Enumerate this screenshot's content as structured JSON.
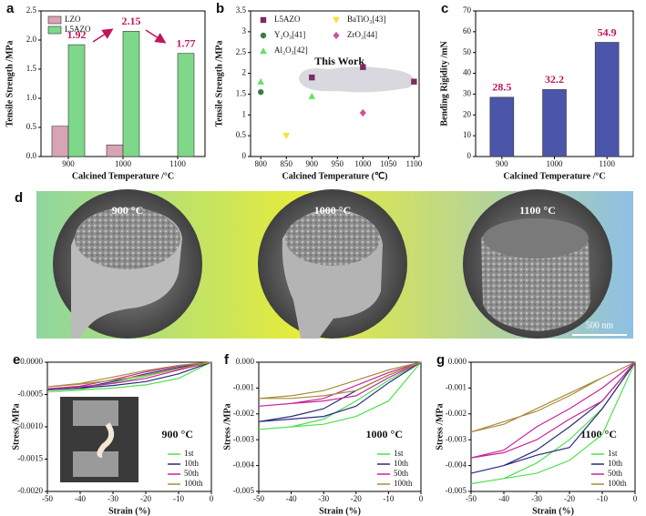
{
  "chart_data": [
    {
      "type": "bar",
      "label": "a",
      "x_label": "Calcined Temperature /°C",
      "y_label": "Tensile Strength /MPa",
      "categories": [
        "900",
        "1000",
        "1100"
      ],
      "series": [
        {
          "name": "LZO",
          "color": "#d9a3b6",
          "values": [
            0.52,
            0.2,
            null
          ]
        },
        {
          "name": "L5AZO",
          "color": "#7ed88a",
          "values": [
            1.92,
            2.15,
            1.77
          ],
          "show_labels": true
        }
      ],
      "ylim": [
        0,
        2.5
      ],
      "yticks": [
        {
          "value": 0,
          "label": "0.0"
        },
        {
          "value": 0.5,
          "label": "0.5"
        },
        {
          "value": 1,
          "label": "1.0"
        },
        {
          "value": 1.5,
          "label": "1.5"
        },
        {
          "value": 2,
          "label": "2.0"
        },
        {
          "value": 2.5,
          "label": "2.5"
        }
      ],
      "legend": "upper left"
    },
    {
      "type": "scatter",
      "label": "b",
      "x_label": "Calcined Temperature (℃)",
      "y_label": "Tensile Strength /MPa",
      "annotation": "This Work",
      "series": [
        {
          "name": "L5AZO",
          "color": "#7a2d5e",
          "marker": "square",
          "x": [
            900,
            1000,
            1100
          ],
          "values": [
            1.9,
            2.15,
            1.8
          ]
        },
        {
          "name": "Y₂O₃[41]",
          "color": "#3d7a4a",
          "marker": "circle",
          "x": [
            800
          ],
          "values": [
            1.55
          ]
        },
        {
          "name": "Al₂O₃[42]",
          "color": "#66e066",
          "marker": "triangle",
          "x": [
            800,
            900
          ],
          "values": [
            1.8,
            1.45
          ]
        },
        {
          "name": "BaTiO₃[43]",
          "color": "#f2e23a",
          "marker": "triangle-down",
          "x": [
            850
          ],
          "values": [
            0.5
          ]
        },
        {
          "name": "ZrO₂[44]",
          "color": "#d0509a",
          "marker": "diamond",
          "x": [
            1000
          ],
          "values": [
            1.05
          ]
        }
      ],
      "xlim": [
        780,
        1110
      ],
      "xticks": [
        800,
        850,
        900,
        950,
        1000,
        1050,
        1100
      ],
      "ylim": [
        0,
        3.5
      ],
      "yticks": [
        0,
        0.5,
        1,
        1.5,
        2,
        2.5,
        3,
        3.5
      ],
      "legend": "upper left"
    },
    {
      "type": "bar",
      "label": "c",
      "x_label": "Calcined Temperature /°C",
      "y_label": "Bending Rigidity /mN",
      "categories": [
        "900",
        "1000",
        "1100"
      ],
      "values": [
        28.5,
        32.2,
        54.9
      ],
      "color": "#4b56aa",
      "show_labels": true,
      "ylim": [
        0,
        70
      ],
      "yticks": [
        0,
        10,
        20,
        30,
        40,
        50,
        60,
        70
      ]
    },
    {
      "type": "line",
      "label": "e",
      "x_label": "Strain (%)",
      "y_label": "Stress /MPa",
      "annotation": "900 °C",
      "series": [
        {
          "name": "1st",
          "color": "#4fe04f",
          "x": [
            0,
            -10,
            -20,
            -30,
            -40,
            -50,
            -40,
            -30,
            -20,
            -10,
            0
          ],
          "values": [
            0,
            -0.00025,
            -0.00035,
            -0.0004,
            -0.00043,
            -0.00046,
            -0.00042,
            -0.00032,
            -0.00022,
            -0.0001,
            0
          ]
        },
        {
          "name": "10th",
          "color": "#2a2a80",
          "x": [
            0,
            -10,
            -20,
            -30,
            -40,
            -50,
            -40,
            -30,
            -20,
            -10,
            0
          ],
          "values": [
            0,
            -0.00018,
            -0.0003,
            -0.00036,
            -0.0004,
            -0.00043,
            -0.0004,
            -0.0003,
            -0.00018,
            -8e-05,
            0
          ]
        },
        {
          "name": "50th",
          "color": "#c8249a",
          "x": [
            0,
            -10,
            -20,
            -30,
            -40,
            -50,
            -40,
            -30,
            -20,
            -10,
            0
          ],
          "values": [
            0,
            -0.00012,
            -0.00025,
            -0.00033,
            -0.00038,
            -0.00041,
            -0.00037,
            -0.00027,
            -0.00015,
            -6e-05,
            0
          ]
        },
        {
          "name": "100th",
          "color": "#a88c3c",
          "x": [
            0,
            -10,
            -20,
            -30,
            -40,
            -50,
            -40,
            -30,
            -20,
            -10,
            0
          ],
          "values": [
            0,
            -0.0001,
            -0.0002,
            -0.00028,
            -0.00034,
            -0.00038,
            -0.00033,
            -0.00023,
            -0.00013,
            -5e-05,
            0
          ]
        }
      ],
      "xlim": [
        -50,
        0
      ],
      "xticks": [
        -50,
        -40,
        -30,
        -20,
        -10,
        0
      ],
      "ylim": [
        -0.002,
        0
      ],
      "yticks": [
        {
          "value": -0.002,
          "label": "-0.0020"
        },
        {
          "value": -0.0015,
          "label": "-0.0015"
        },
        {
          "value": -0.001,
          "label": "-0.0010"
        },
        {
          "value": -0.0005,
          "label": "-0.0005"
        },
        {
          "value": 0,
          "label": "0.0000"
        }
      ],
      "legend": "lower right"
    },
    {
      "type": "line",
      "label": "f",
      "x_label": "Strain (%)",
      "y_label": "Stress /MPa",
      "annotation": "1000 °C",
      "series": [
        {
          "name": "1st",
          "color": "#4fe04f",
          "x": [
            0,
            -10,
            -20,
            -30,
            -40,
            -50,
            -40,
            -30,
            -20,
            -10,
            0
          ],
          "values": [
            0,
            -0.0015,
            -0.0021,
            -0.0024,
            -0.0025,
            -0.0026,
            -0.0025,
            -0.0022,
            -0.0015,
            -0.0007,
            0
          ]
        },
        {
          "name": "10th",
          "color": "#2a2a80",
          "x": [
            0,
            -10,
            -20,
            -30,
            -40,
            -50,
            -40,
            -30,
            -20,
            -10,
            0
          ],
          "values": [
            0,
            -0.0008,
            -0.0017,
            -0.0021,
            -0.0022,
            -0.0023,
            -0.0021,
            -0.0018,
            -0.0011,
            -0.0005,
            0
          ]
        },
        {
          "name": "50th",
          "color": "#c8249a",
          "x": [
            0,
            -10,
            -20,
            -30,
            -40,
            -50,
            -40,
            -30,
            -20,
            -10,
            0
          ],
          "values": [
            0,
            -0.0006,
            -0.0013,
            -0.0015,
            -0.0016,
            -0.0017,
            -0.0016,
            -0.0014,
            -0.0009,
            -0.0004,
            0
          ]
        },
        {
          "name": "100th",
          "color": "#a88c3c",
          "x": [
            0,
            -10,
            -20,
            -30,
            -40,
            -50,
            -40,
            -30,
            -20,
            -10,
            0
          ],
          "values": [
            0,
            -0.0005,
            -0.0011,
            -0.0013,
            -0.0014,
            -0.0014,
            -0.0013,
            -0.0011,
            -0.0007,
            -0.0003,
            0
          ]
        }
      ],
      "xlim": [
        -50,
        0
      ],
      "xticks": [
        -50,
        -40,
        -30,
        -20,
        -10,
        0
      ],
      "ylim": [
        -0.005,
        0
      ],
      "yticks": [
        -0.005,
        -0.004,
        -0.003,
        -0.002,
        -0.001,
        {
          "value": 0,
          "label": "0.000"
        }
      ],
      "legend": "lower right"
    },
    {
      "type": "line",
      "label": "g",
      "x_label": "Strain (%)",
      "y_label": "Stress /MPa",
      "annotation": "1100 °C",
      "series": [
        {
          "name": "1st",
          "color": "#4fe04f",
          "x": [
            0,
            -10,
            -20,
            -30,
            -40,
            -50,
            -40,
            -30,
            -20,
            -10,
            0
          ],
          "values": [
            0,
            -0.0028,
            -0.0038,
            -0.0043,
            -0.0045,
            -0.0047,
            -0.0045,
            -0.0039,
            -0.003,
            -0.0018,
            0
          ]
        },
        {
          "name": "10th",
          "color": "#2a2a80",
          "x": [
            0,
            -10,
            -20,
            -30,
            -40,
            -50,
            -40,
            -30,
            -20,
            -10,
            0
          ],
          "values": [
            0,
            -0.0018,
            -0.0033,
            -0.0036,
            -0.004,
            -0.0043,
            -0.004,
            -0.0034,
            -0.0025,
            -0.0015,
            0
          ]
        },
        {
          "name": "50th",
          "color": "#c8249a",
          "x": [
            0,
            -10,
            -20,
            -30,
            -40,
            -50,
            -40,
            -30,
            -20,
            -10,
            0
          ],
          "values": [
            0,
            -0.0015,
            -0.0022,
            -0.003,
            -0.0035,
            -0.0037,
            -0.0034,
            -0.0025,
            -0.0018,
            -0.001,
            0
          ]
        },
        {
          "name": "100th",
          "color": "#a88c3c",
          "x": [
            0,
            -10,
            -20,
            -30,
            -40,
            -50,
            -40,
            -30,
            -20,
            -10,
            0
          ],
          "values": [
            0,
            -0.0006,
            -0.0013,
            -0.0019,
            -0.0023,
            -0.0027,
            -0.0024,
            -0.0018,
            -0.0012,
            -0.0006,
            0
          ]
        }
      ],
      "xlim": [
        -50,
        0
      ],
      "xticks": [
        -50,
        -40,
        -30,
        -20,
        -10,
        0
      ],
      "ylim": [
        -0.005,
        0
      ],
      "yticks": [
        -0.005,
        -0.004,
        -0.003,
        -0.002,
        -0.001,
        {
          "value": 0,
          "label": "0.000"
        }
      ],
      "legend": "lower right"
    }
  ],
  "image_panel": {
    "label": "d",
    "captions": [
      "900 °C",
      "1000 °C",
      "1100 °C"
    ],
    "scale_bar": "500 nm"
  }
}
